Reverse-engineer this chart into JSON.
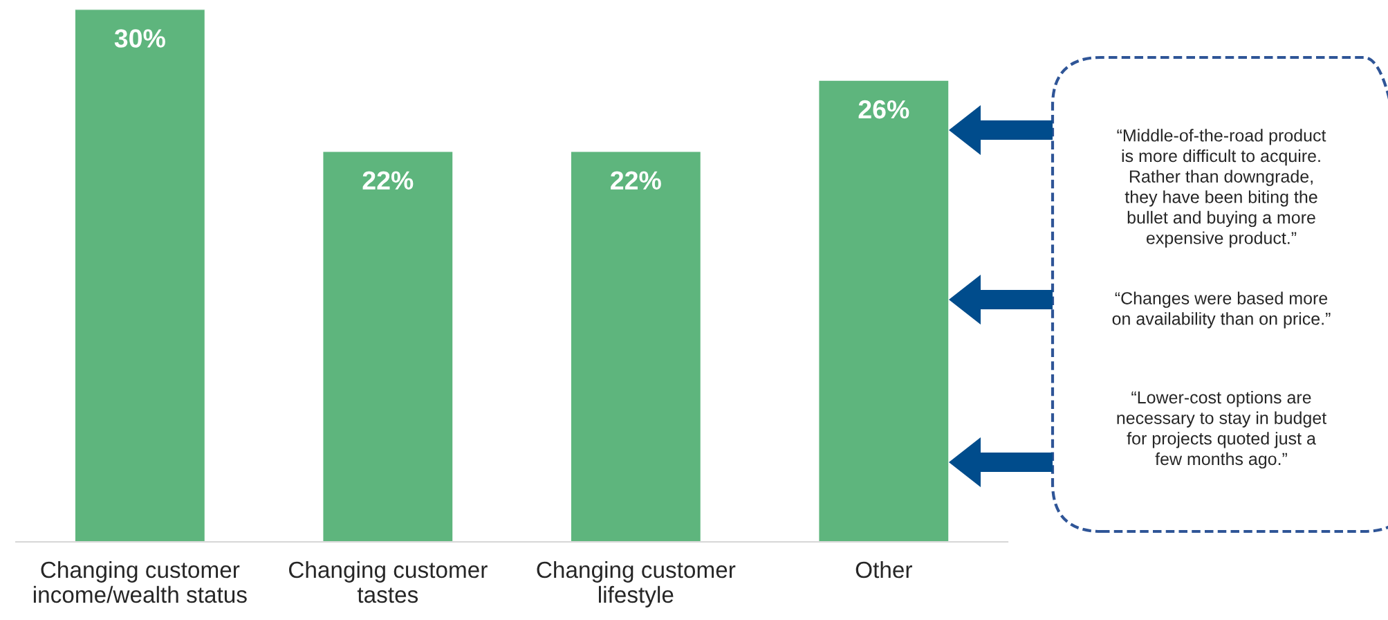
{
  "chart_data": {
    "type": "bar",
    "categories": [
      "Changing customer\nincome/wealth status",
      "Changing customer\ntastes",
      "Changing customer\nlifestyle",
      "Other"
    ],
    "values": [
      30,
      22,
      22,
      26
    ],
    "color": "#5eb57d",
    "value_labels": [
      "30%",
      "22%",
      "22%",
      "26%"
    ],
    "annotations": [
      "“Middle-of-the-road product\nis more difficult to acquire.\nRather than downgrade,\nthey have been biting the\nbullet and buying a more\nexpensive product.”",
      "“Changes were based more\non availability than on price.”",
      "“Lower-cost options are\nnecessary to stay in budget\nfor projects quoted just a\nfew months ago.”"
    ]
  }
}
